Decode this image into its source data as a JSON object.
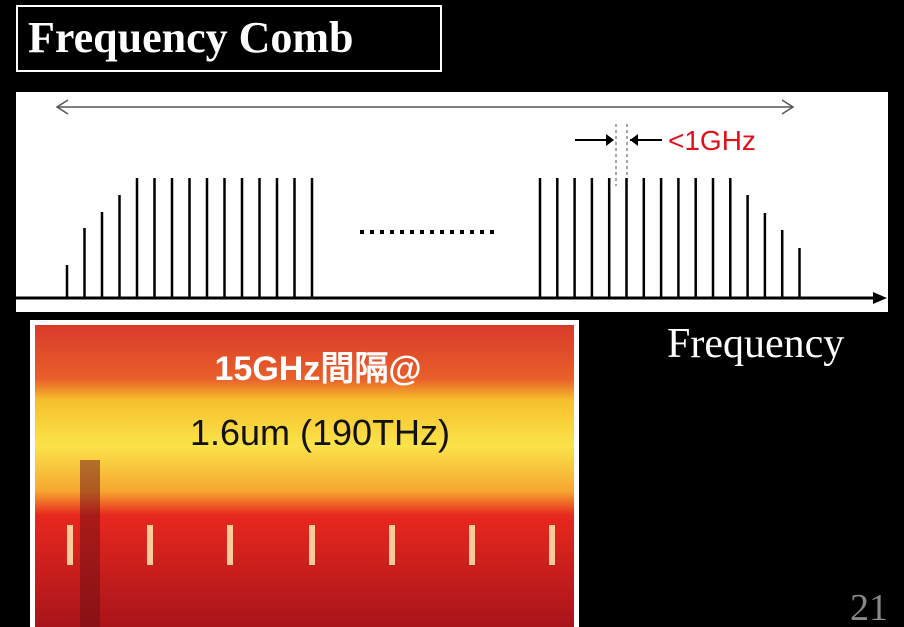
{
  "title": "Frequency Comb",
  "diagram": {
    "spacing_label": "<1GHz",
    "axis_label": "Frequency"
  },
  "photo": {
    "caption_1": "15GHz間隔@",
    "caption_2": "1.6um (190THz)"
  },
  "slide_number": "21"
}
